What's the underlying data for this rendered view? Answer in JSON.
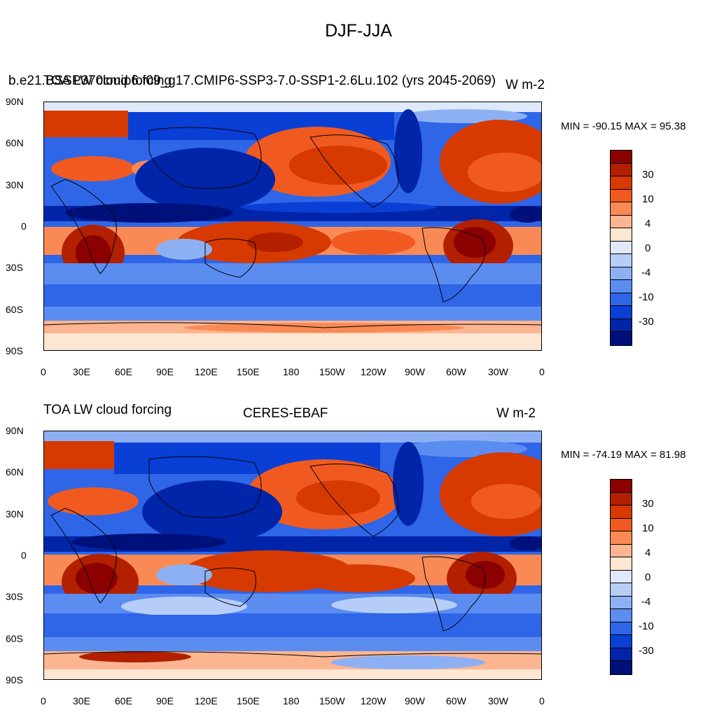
{
  "main_title": "DJF-JJA",
  "top_panel": {
    "overlapping_titles": [
      "b.e21.BSSP370cmip6.f09_g17.CMIP6-SSP3-7.0-SSP1-2.6Lu.102 (yrs 2045-2069)",
      "TOA LW cloud forcing",
      "W m-2"
    ],
    "min_max": "MIN = -90.15 MAX =  95.38"
  },
  "bottom_panel": {
    "left_title": "TOA LW cloud forcing",
    "center_title": "CERES-EBAF",
    "right_title": "W m-2",
    "min_max": "MIN = -74.19 MAX =  81.98"
  },
  "lat_labels": [
    "90N",
    "60N",
    "30N",
    "0",
    "30S",
    "60S",
    "90S"
  ],
  "lon_labels": [
    "0",
    "30E",
    "60E",
    "90E",
    "120E",
    "150E",
    "180",
    "150W",
    "120W",
    "90W",
    "60W",
    "30W",
    "0"
  ],
  "colorbar": {
    "labels": [
      "30",
      "10",
      "4",
      "0",
      "-4",
      "-10",
      "-30"
    ],
    "colors": [
      "#8b0000",
      "#b22000",
      "#d63a00",
      "#f05a20",
      "#fa8a55",
      "#fcb591",
      "#fde6d2",
      "#dfe9fa",
      "#b6cdf7",
      "#8db0f5",
      "#5b8df0",
      "#2f66e8",
      "#0a3fd6",
      "#0025a8",
      "#00107a"
    ]
  },
  "colors": {
    "land_outline": "#000000"
  }
}
